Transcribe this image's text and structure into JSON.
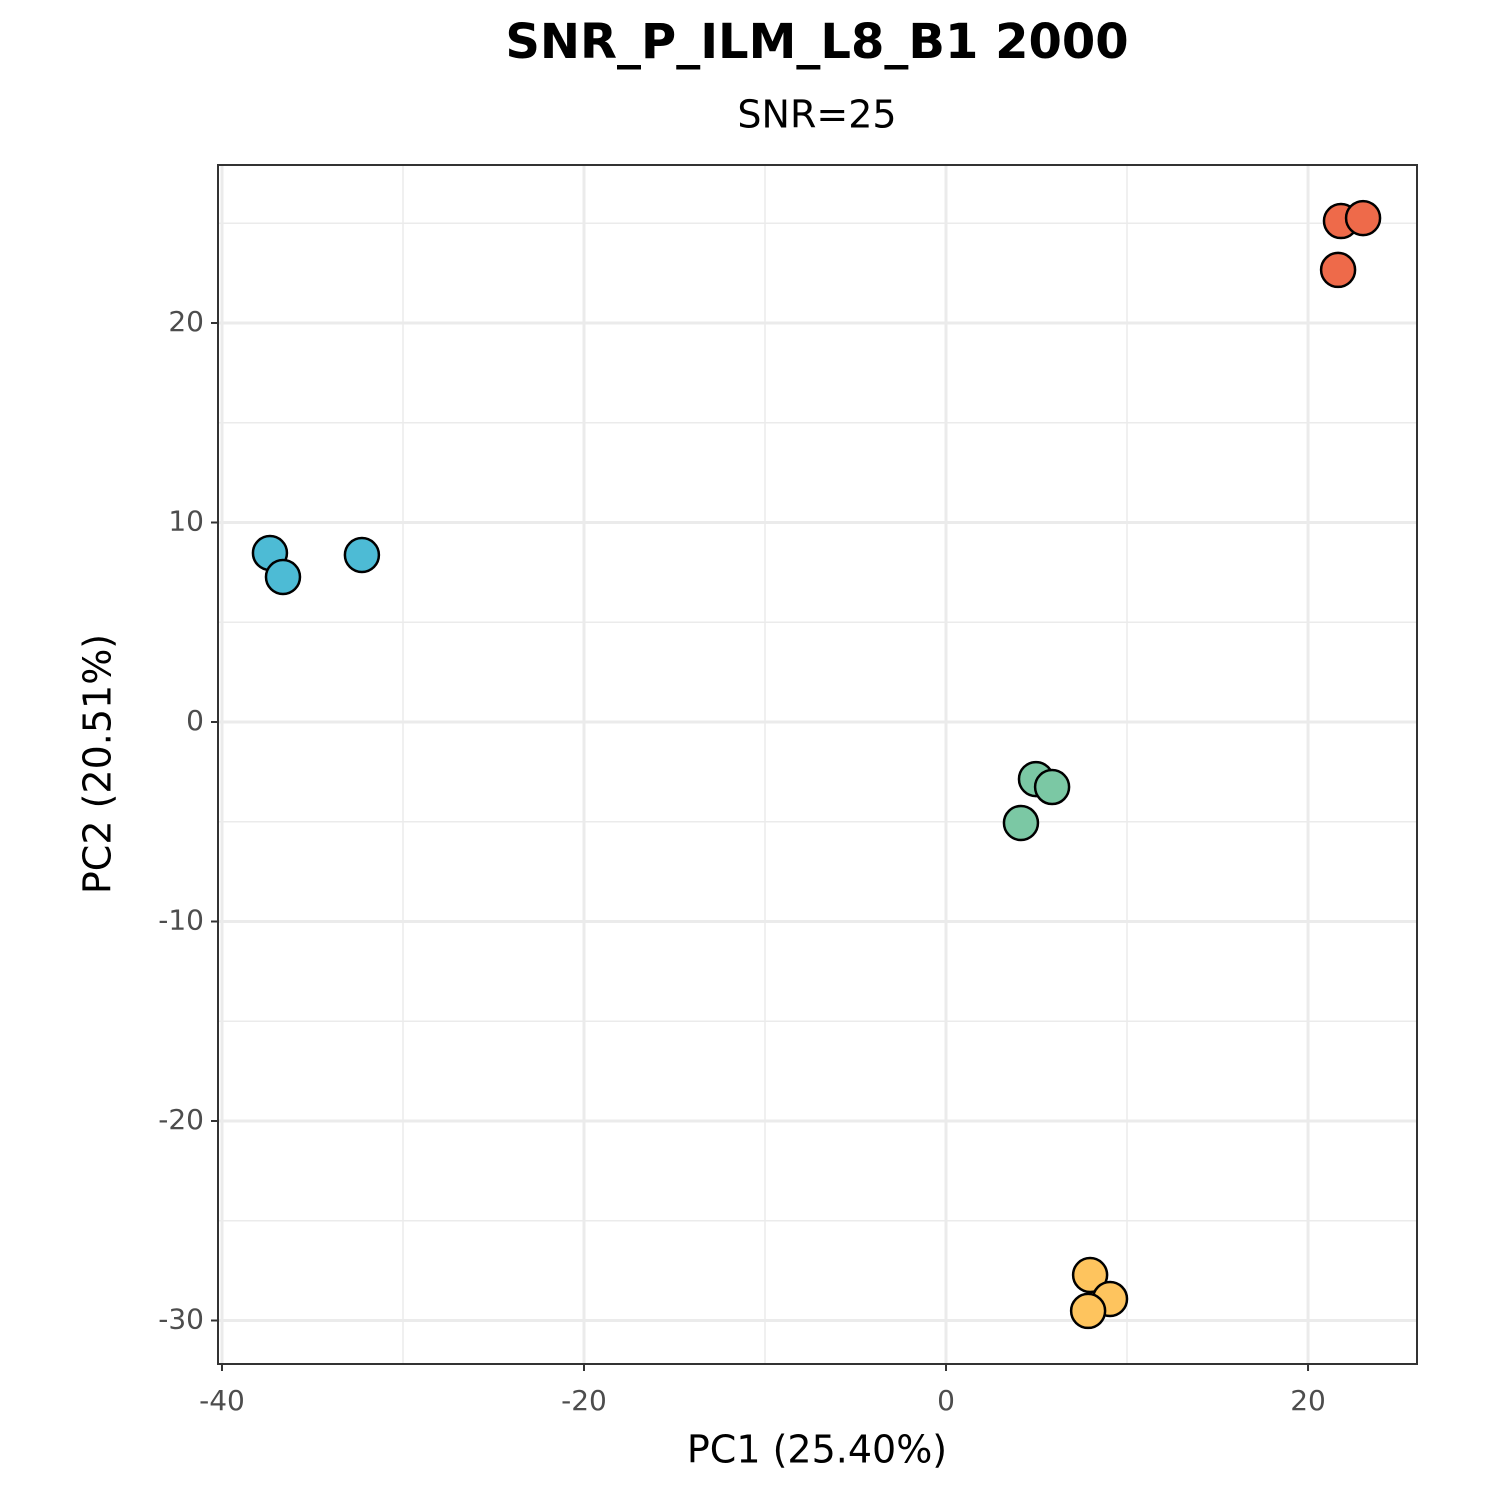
{
  "chart_data": {
    "type": "scatter",
    "title": "SNR_P_ILM_L8_B1 2000",
    "subtitle": "SNR=25",
    "x_label": "PC1 (25.40%)",
    "y_label": "PC2 (20.51%)",
    "xlim": [
      -40.22,
      26.02
    ],
    "ylim": [
      -32.18,
      27.92
    ],
    "xticks": [
      -40,
      -20,
      0,
      20
    ],
    "yticks": [
      -30,
      -20,
      -10,
      0,
      10,
      20
    ],
    "grid": true,
    "series": [
      {
        "color": "#4DBBD5",
        "x": [
          -37.35,
          -36.63,
          -32.27
        ],
        "values": [
          8.47,
          7.27,
          8.37
        ]
      },
      {
        "color": "#EE6A4A",
        "x": [
          21.82,
          23.04,
          21.66
        ],
        "values": [
          25.11,
          25.26,
          22.66
        ]
      },
      {
        "color": "#7BC8A4",
        "x": [
          4.97,
          5.86,
          4.14
        ],
        "values": [
          -2.86,
          -3.26,
          -5.06
        ]
      },
      {
        "color": "#FEC45E",
        "x": [
          7.96,
          9.06,
          7.85
        ],
        "values": [
          -27.72,
          -28.92,
          -29.52
        ]
      }
    ]
  }
}
